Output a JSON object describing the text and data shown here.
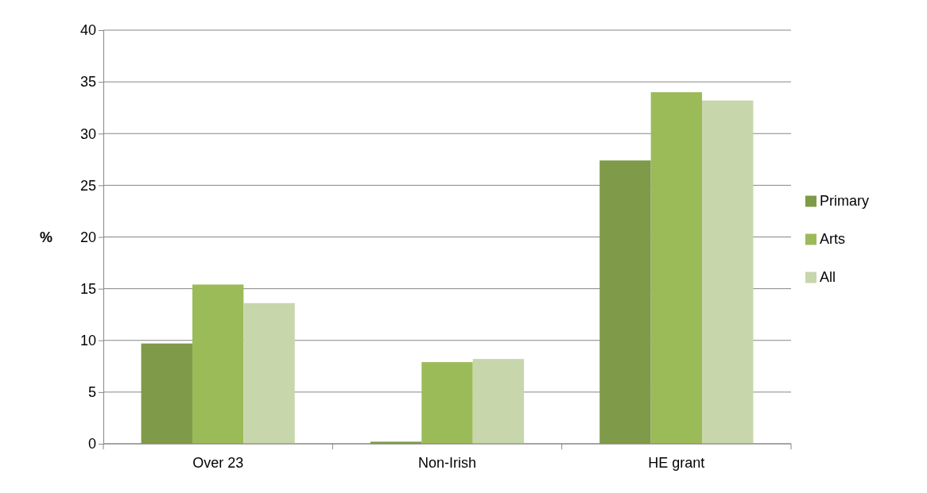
{
  "chart_data": {
    "type": "bar",
    "ylabel": "%",
    "categories": [
      "Over 23",
      "Non-Irish",
      "HE grant"
    ],
    "series": [
      {
        "name": "Primary",
        "color": "#7f9a48",
        "values": [
          9.7,
          0.2,
          27.4
        ]
      },
      {
        "name": "Arts",
        "color": "#9bbb59",
        "values": [
          15.4,
          7.9,
          34.0
        ]
      },
      {
        "name": "All",
        "color": "#c7d6ab",
        "values": [
          13.6,
          8.2,
          33.2
        ]
      }
    ],
    "ylim": [
      0,
      40
    ],
    "yticks": [
      0,
      5,
      10,
      15,
      20,
      25,
      30,
      35,
      40
    ],
    "grid": "y",
    "legend": "right"
  }
}
